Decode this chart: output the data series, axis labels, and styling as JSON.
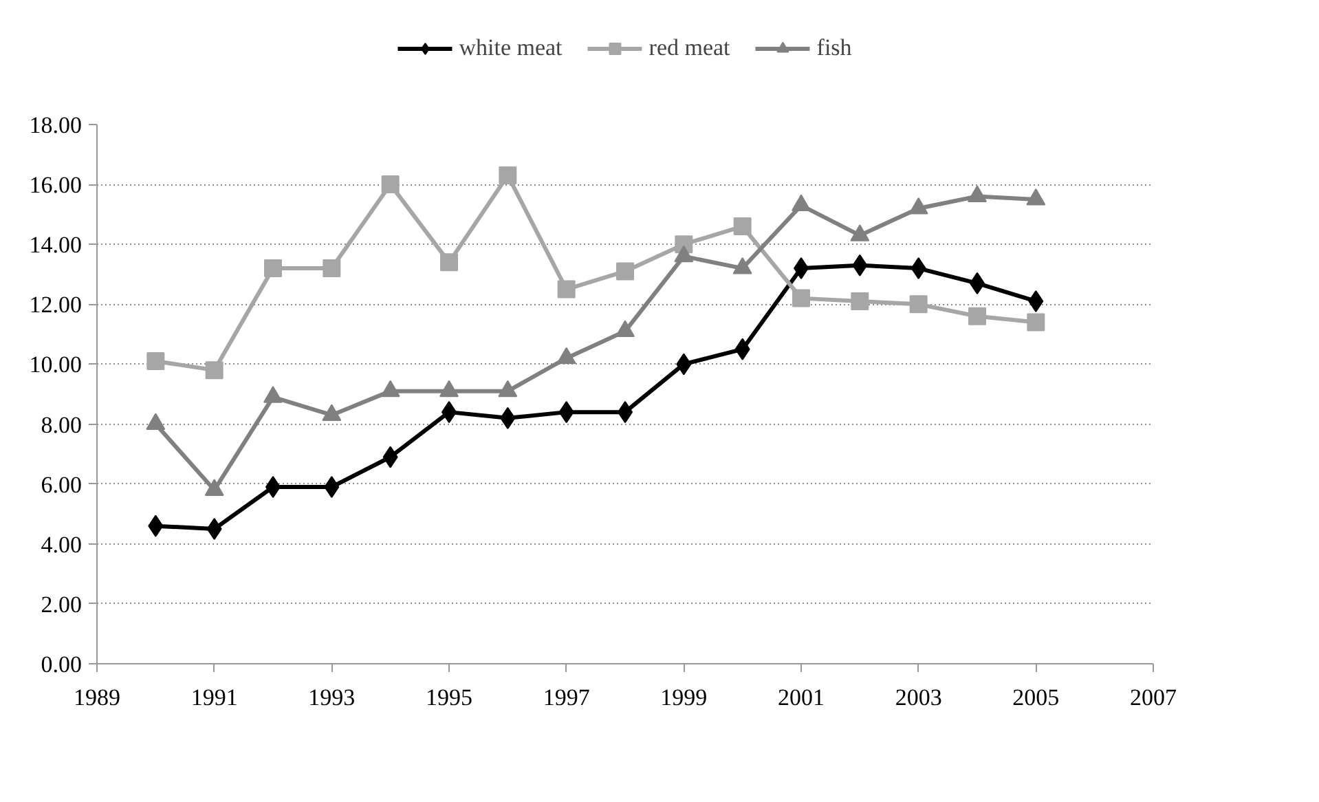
{
  "chart_data": {
    "type": "line",
    "x": [
      1990,
      1991,
      1992,
      1993,
      1994,
      1995,
      1996,
      1997,
      1998,
      1999,
      2000,
      2001,
      2002,
      2003,
      2004,
      2005
    ],
    "series": [
      {
        "name": "white meat",
        "color": "#000000",
        "marker": "diamond",
        "values": [
          4.6,
          4.5,
          5.9,
          5.9,
          6.9,
          8.4,
          8.2,
          8.4,
          8.4,
          10.0,
          10.5,
          13.2,
          13.3,
          13.2,
          12.7,
          12.1
        ]
      },
      {
        "name": "red meat",
        "color": "#a6a6a6",
        "marker": "square",
        "values": [
          10.1,
          9.8,
          13.2,
          13.2,
          16.0,
          13.4,
          16.3,
          12.5,
          13.1,
          14.0,
          14.6,
          12.2,
          12.1,
          12.0,
          11.6,
          11.4
        ]
      },
      {
        "name": "fish",
        "color": "#808080",
        "marker": "triangle",
        "values": [
          8.0,
          5.8,
          8.9,
          8.3,
          9.1,
          9.1,
          9.1,
          10.2,
          11.1,
          13.6,
          13.2,
          15.3,
          14.3,
          15.2,
          15.6,
          15.5
        ]
      }
    ],
    "xlim": [
      1989,
      2007
    ],
    "xticks": [
      1989,
      1991,
      1993,
      1995,
      1997,
      1999,
      2001,
      2003,
      2005,
      2007
    ],
    "ylim": [
      0,
      18
    ],
    "yticks": [
      {
        "value": 0,
        "label": "0.00"
      },
      {
        "value": 2,
        "label": "2.00"
      },
      {
        "value": 4,
        "label": "4.00"
      },
      {
        "value": 6,
        "label": "6.00"
      },
      {
        "value": 8,
        "label": "8.00"
      },
      {
        "value": 10,
        "label": "10.00"
      },
      {
        "value": 12,
        "label": "12.00"
      },
      {
        "value": 14,
        "label": "14.00"
      },
      {
        "value": 16,
        "label": "16.00"
      },
      {
        "value": 18,
        "label": "18.00"
      }
    ],
    "grid": "y",
    "legend": "top",
    "line_style": "solid"
  }
}
